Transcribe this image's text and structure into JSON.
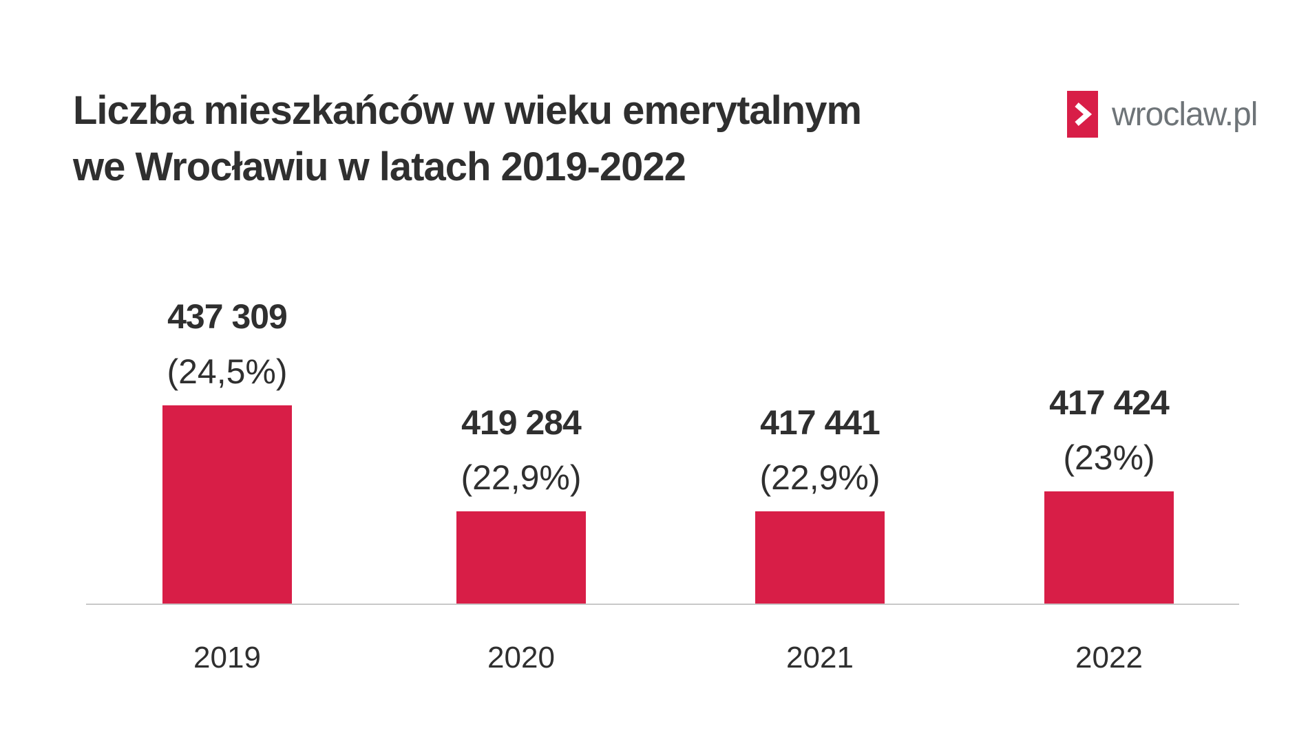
{
  "title": {
    "line1": "Liczba mieszkańców w wieku emerytalnym",
    "line2": "we Wrocławiu w latach 2019-2022"
  },
  "logo": {
    "text": "wroclaw.pl",
    "icon": "chevron-right-icon",
    "color": "#d81e47"
  },
  "chart_data": {
    "type": "bar",
    "categories": [
      "2019",
      "2020",
      "2021",
      "2022"
    ],
    "values": [
      437309,
      419284,
      417441,
      417424
    ],
    "value_labels": [
      "437 309",
      "419 284",
      "417 441",
      "417 424"
    ],
    "share_labels": [
      "(24,5%)",
      "(22,9%)",
      "(22,9%)",
      "(23%)"
    ],
    "bar_color": "#d81e47",
    "xlabel": "",
    "ylabel": "",
    "grid": false,
    "legend": "none"
  }
}
